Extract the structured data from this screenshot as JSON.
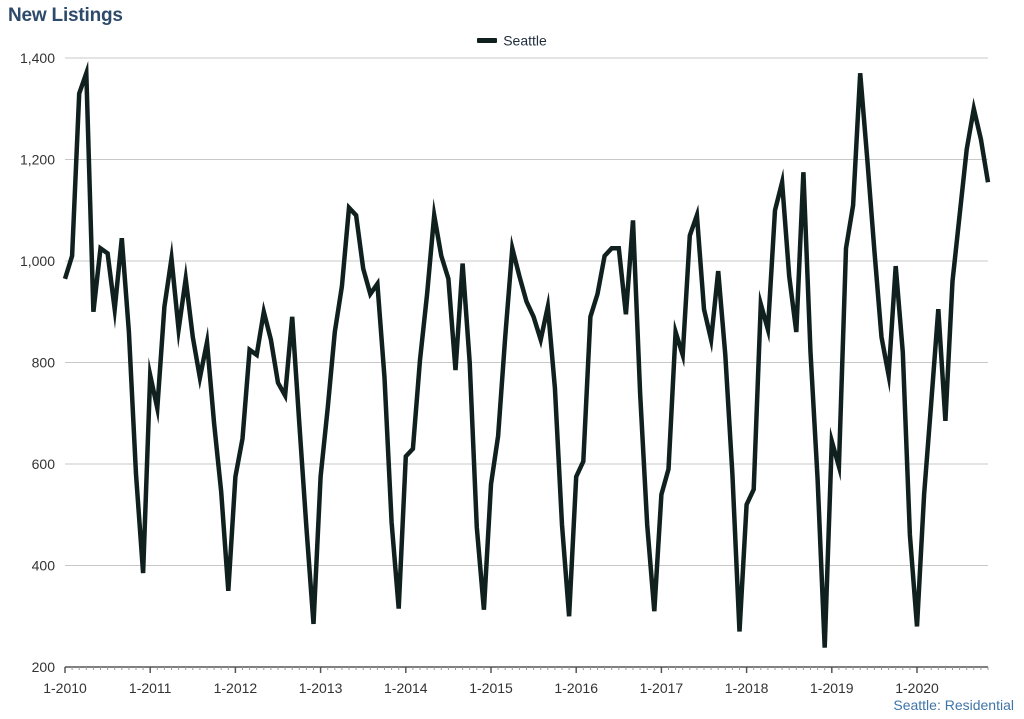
{
  "title": "New Listings",
  "footer": "Seattle: Residential",
  "colors": {
    "line": "#10201f",
    "title": "#2d4a6b",
    "footer": "#3f74a8",
    "grid": "#c8c8c8",
    "axis": "#555555"
  },
  "chart_data": {
    "type": "line",
    "title": "New Listings",
    "xlabel": "",
    "ylabel": "",
    "ylim": [
      200,
      1400
    ],
    "y_ticks": [
      200,
      400,
      600,
      800,
      1000,
      1200,
      1400
    ],
    "y_tick_labels": [
      "200",
      "400",
      "600",
      "800",
      "1,000",
      "1,200",
      "1,400"
    ],
    "x_ticks": [
      "2010-01",
      "2011-01",
      "2012-01",
      "2013-01",
      "2014-01",
      "2015-01",
      "2016-01",
      "2017-01",
      "2018-01",
      "2019-01",
      "2020-01"
    ],
    "x_tick_labels": [
      "1-2010",
      "1-2011",
      "1-2012",
      "1-2013",
      "1-2014",
      "1-2015",
      "1-2016",
      "1-2017",
      "1-2018",
      "1-2019",
      "1-2020"
    ],
    "grid": true,
    "legend": "top-center",
    "x_start": "2010-01",
    "x_end": "2020-11",
    "series": [
      {
        "name": "Seattle",
        "values": [
          965,
          1010,
          1330,
          1370,
          900,
          1025,
          1015,
          905,
          1045,
          860,
          580,
          385,
          775,
          710,
          910,
          1005,
          865,
          965,
          850,
          770,
          840,
          680,
          545,
          350,
          575,
          650,
          825,
          815,
          900,
          845,
          760,
          735,
          890,
          680,
          475,
          285,
          575,
          710,
          860,
          950,
          1105,
          1090,
          985,
          935,
          955,
          770,
          485,
          315,
          615,
          630,
          805,
          935,
          1090,
          1010,
          965,
          785,
          995,
          800,
          475,
          313,
          560,
          655,
          850,
          1025,
          970,
          920,
          890,
          845,
          910,
          750,
          480,
          300,
          575,
          605,
          890,
          935,
          1010,
          1025,
          1025,
          895,
          1080,
          740,
          480,
          310,
          540,
          590,
          860,
          815,
          1050,
          1090,
          905,
          845,
          980,
          815,
          580,
          270,
          520,
          550,
          915,
          865,
          1100,
          1155,
          970,
          860,
          1175,
          820,
          570,
          238,
          645,
          595,
          1025,
          1110,
          1370,
          1200,
          1020,
          850,
          775,
          990,
          820,
          460,
          280,
          540,
          720,
          905,
          685,
          960,
          1090,
          1220,
          1300,
          1240,
          1155
        ]
      }
    ]
  }
}
